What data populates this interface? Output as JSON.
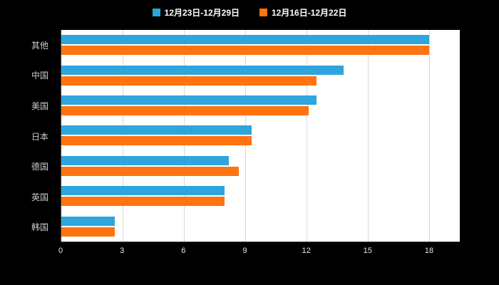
{
  "chart_data": {
    "type": "bar",
    "orientation": "horizontal",
    "title": "",
    "xlabel": "",
    "ylabel": "",
    "categories": [
      "其他",
      "中国",
      "美国",
      "日本",
      "德国",
      "英国",
      "韩国"
    ],
    "series": [
      {
        "name": "12月23日-12月29日",
        "color": "#2EA5DC",
        "values": [
          18,
          13.8,
          12.5,
          9.3,
          8.2,
          8.0,
          2.6
        ]
      },
      {
        "name": "12月16日-12月22日",
        "color": "#FF7311",
        "values": [
          18,
          12.5,
          12.1,
          9.3,
          8.7,
          8.0,
          2.6
        ]
      }
    ],
    "xlim": [
      0,
      19.5
    ],
    "xticks": [
      0,
      3,
      6,
      9,
      12,
      15,
      18
    ],
    "grid": true,
    "legend_position": "top",
    "plot_background": "#ffffff",
    "page_background": "#000000"
  }
}
